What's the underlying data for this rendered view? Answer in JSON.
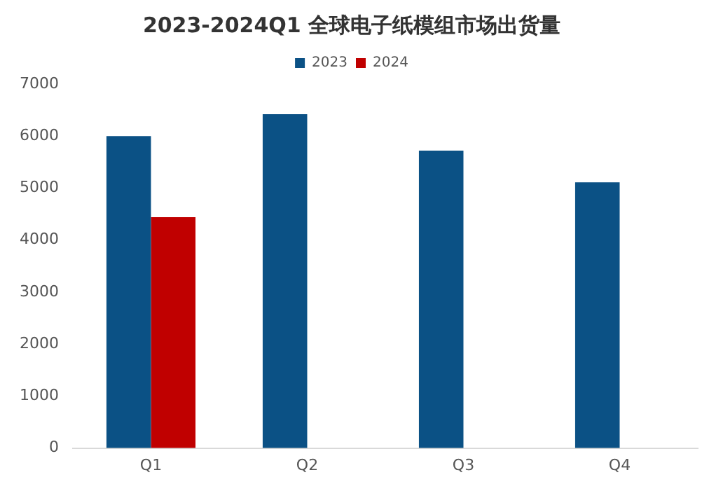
{
  "chart_data": {
    "type": "bar",
    "title": "2023-2024Q1 全球电子纸模组市场出货量",
    "categories": [
      "Q1",
      "Q2",
      "Q3",
      "Q4"
    ],
    "series": [
      {
        "name": "2023",
        "color": "#0b5185",
        "values": [
          6000,
          6420,
          5720,
          5110
        ]
      },
      {
        "name": "2024",
        "color": "#c00000",
        "values": [
          4440,
          null,
          null,
          null
        ]
      }
    ],
    "ylim": [
      0,
      7000
    ],
    "yticks": [
      0,
      1000,
      2000,
      3000,
      4000,
      5000,
      6000,
      7000
    ],
    "grid": false,
    "legend": "top"
  }
}
